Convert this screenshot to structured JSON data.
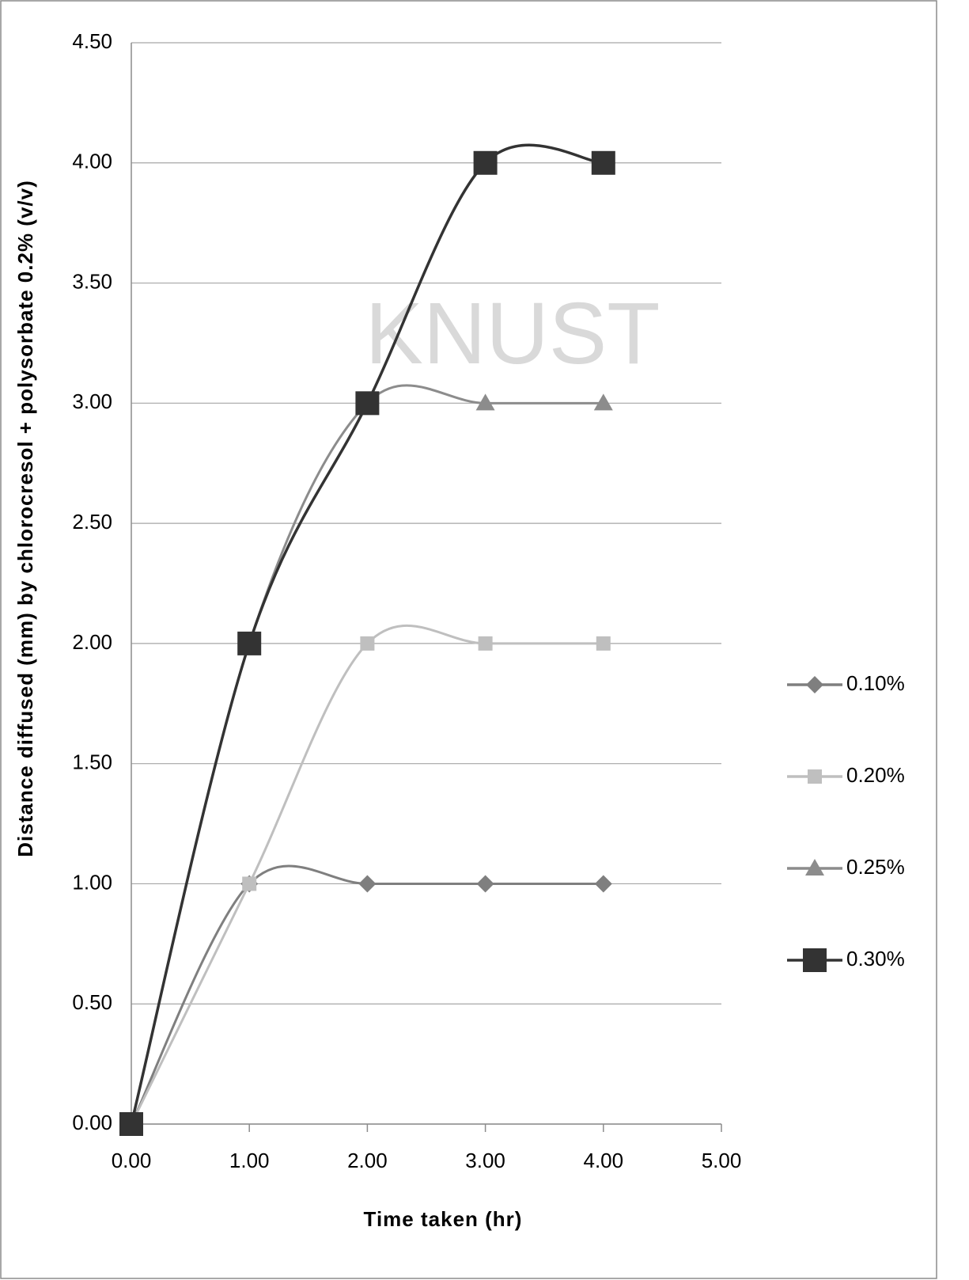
{
  "chart_data": {
    "type": "line",
    "watermark": "KNUST",
    "x_label": "Time taken (hr)",
    "y_label": "Distance diffused (mm) by chlorocresol + polysorbate 0.2%  (v/v)",
    "x": [
      0,
      1,
      2,
      3,
      4
    ],
    "series": [
      {
        "name": "0.10%",
        "color": "#7f7f7f",
        "marker": "diamond",
        "values": [
          0,
          1,
          1,
          1,
          1
        ]
      },
      {
        "name": "0.20%",
        "color": "#bfbfbf",
        "marker": "square",
        "values": [
          0,
          1,
          2,
          2,
          2
        ]
      },
      {
        "name": "0.25%",
        "color": "#8c8c8c",
        "marker": "triangle",
        "values": [
          0,
          2,
          3,
          3,
          3
        ]
      },
      {
        "name": "0.30%",
        "color": "#333333",
        "marker": "big-square",
        "values": [
          0,
          2,
          3,
          4,
          4
        ]
      }
    ],
    "xlim": [
      0,
      5
    ],
    "xticks": [
      {
        "value": 0,
        "label": "0.00"
      },
      {
        "value": 1,
        "label": "1.00"
      },
      {
        "value": 2,
        "label": "2.00"
      },
      {
        "value": 3,
        "label": "3.00"
      },
      {
        "value": 4,
        "label": "4.00"
      },
      {
        "value": 5,
        "label": "5.00"
      }
    ],
    "ylim": [
      0,
      4.5
    ],
    "yticks": [
      {
        "value": 0,
        "label": "0.00"
      },
      {
        "value": 0.5,
        "label": "0.50"
      },
      {
        "value": 1,
        "label": "1.00"
      },
      {
        "value": 1.5,
        "label": "1.50"
      },
      {
        "value": 2,
        "label": "2.00"
      },
      {
        "value": 2.5,
        "label": "2.50"
      },
      {
        "value": 3,
        "label": "3.00"
      },
      {
        "value": 3.5,
        "label": "3.50"
      },
      {
        "value": 4,
        "label": "4.00"
      },
      {
        "value": 4.5,
        "label": "4.50"
      }
    ],
    "grid": true,
    "smooth": true,
    "legend": "right"
  }
}
